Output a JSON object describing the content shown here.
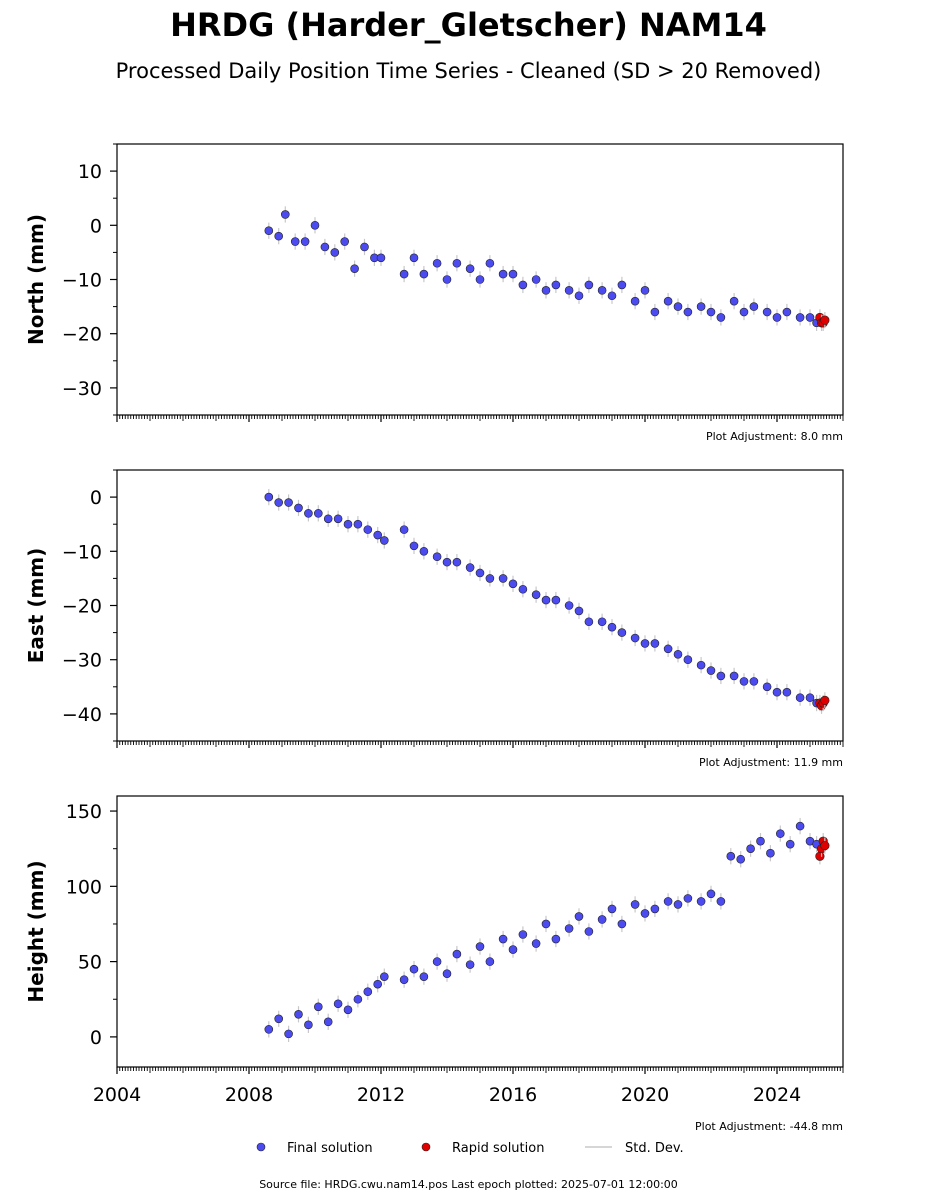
{
  "chart_data": [
    {
      "type": "scatter",
      "panel": "north",
      "title": "HRDG (Harder_Gletscher) NAM14",
      "subtitle": "Processed Daily Position Time Series - Cleaned (SD > 20 Removed)",
      "ylabel": "North (mm)",
      "xlabel": "",
      "xlim": [
        2004,
        2026
      ],
      "ylim": [
        -35,
        15
      ],
      "yticks": [
        10,
        0,
        -10,
        -20,
        -30
      ],
      "plot_adjustment": "Plot Adjustment: 8.0 mm",
      "series": [
        {
          "name": "Final solution",
          "color": "#4b4bf0",
          "x": [
            2008.6,
            2008.9,
            2009.1,
            2009.4,
            2009.7,
            2010.0,
            2010.3,
            2010.6,
            2010.9,
            2011.2,
            2011.5,
            2011.8,
            2012.0,
            2012.7,
            2013.0,
            2013.3,
            2013.7,
            2014.0,
            2014.3,
            2014.7,
            2015.0,
            2015.3,
            2015.7,
            2016.0,
            2016.3,
            2016.7,
            2017.0,
            2017.3,
            2017.7,
            2018.0,
            2018.3,
            2018.7,
            2019.0,
            2019.3,
            2019.7,
            2020.0,
            2020.3,
            2020.7,
            2021.0,
            2021.3,
            2021.7,
            2022.0,
            2022.3,
            2022.7,
            2023.0,
            2023.3,
            2023.7,
            2024.0,
            2024.3,
            2024.7,
            2025.0,
            2025.2
          ],
          "y": [
            -1,
            -2,
            2,
            -3,
            -3,
            0,
            -4,
            -5,
            -3,
            -8,
            -4,
            -6,
            -6,
            -9,
            -6,
            -9,
            -7,
            -10,
            -7,
            -8,
            -10,
            -7,
            -9,
            -9,
            -11,
            -10,
            -12,
            -11,
            -12,
            -13,
            -11,
            -12,
            -13,
            -11,
            -14,
            -12,
            -16,
            -14,
            -15,
            -16,
            -15,
            -16,
            -17,
            -14,
            -16,
            -15,
            -16,
            -17,
            -16,
            -17,
            -17,
            -18
          ]
        },
        {
          "name": "Rapid solution",
          "color": "#e00000",
          "x": [
            2025.3,
            2025.35,
            2025.4,
            2025.45
          ],
          "y": [
            -17,
            -18,
            -18,
            -17.5
          ]
        }
      ]
    },
    {
      "type": "scatter",
      "panel": "east",
      "ylabel": "East (mm)",
      "xlabel": "",
      "xlim": [
        2004,
        2026
      ],
      "ylim": [
        -45,
        5
      ],
      "yticks": [
        0,
        -10,
        -20,
        -30,
        -40
      ],
      "plot_adjustment": "Plot Adjustment: 11.9 mm",
      "series": [
        {
          "name": "Final solution",
          "color": "#4b4bf0",
          "x": [
            2008.6,
            2008.9,
            2009.2,
            2009.5,
            2009.8,
            2010.1,
            2010.4,
            2010.7,
            2011.0,
            2011.3,
            2011.6,
            2011.9,
            2012.1,
            2012.7,
            2013.0,
            2013.3,
            2013.7,
            2014.0,
            2014.3,
            2014.7,
            2015.0,
            2015.3,
            2015.7,
            2016.0,
            2016.3,
            2016.7,
            2017.0,
            2017.3,
            2017.7,
            2018.0,
            2018.3,
            2018.7,
            2019.0,
            2019.3,
            2019.7,
            2020.0,
            2020.3,
            2020.7,
            2021.0,
            2021.3,
            2021.7,
            2022.0,
            2022.3,
            2022.7,
            2023.0,
            2023.3,
            2023.7,
            2024.0,
            2024.3,
            2024.7,
            2025.0,
            2025.2
          ],
          "y": [
            0,
            -1,
            -1,
            -2,
            -3,
            -3,
            -4,
            -4,
            -5,
            -5,
            -6,
            -7,
            -8,
            -6,
            -9,
            -10,
            -11,
            -12,
            -12,
            -13,
            -14,
            -15,
            -15,
            -16,
            -17,
            -18,
            -19,
            -19,
            -20,
            -21,
            -23,
            -23,
            -24,
            -25,
            -26,
            -27,
            -27,
            -28,
            -29,
            -30,
            -31,
            -32,
            -33,
            -33,
            -34,
            -34,
            -35,
            -36,
            -36,
            -37,
            -37,
            -38
          ]
        },
        {
          "name": "Rapid solution",
          "color": "#e00000",
          "x": [
            2025.3,
            2025.35,
            2025.4,
            2025.45
          ],
          "y": [
            -38,
            -38.5,
            -38,
            -37.5
          ]
        }
      ]
    },
    {
      "type": "scatter",
      "panel": "height",
      "ylabel": "Height (mm)",
      "xlabel": "",
      "xlim": [
        2004,
        2026
      ],
      "ylim": [
        -20,
        160
      ],
      "yticks": [
        150,
        100,
        50,
        0
      ],
      "xticks": [
        "2004",
        "2008",
        "2012",
        "2016",
        "2020",
        "2024"
      ],
      "plot_adjustment": "Plot Adjustment: -44.8 mm",
      "series": [
        {
          "name": "Final solution",
          "color": "#4b4bf0",
          "x": [
            2008.6,
            2008.9,
            2009.2,
            2009.5,
            2009.8,
            2010.1,
            2010.4,
            2010.7,
            2011.0,
            2011.3,
            2011.6,
            2011.9,
            2012.1,
            2012.7,
            2013.0,
            2013.3,
            2013.7,
            2014.0,
            2014.3,
            2014.7,
            2015.0,
            2015.3,
            2015.7,
            2016.0,
            2016.3,
            2016.7,
            2017.0,
            2017.3,
            2017.7,
            2018.0,
            2018.3,
            2018.7,
            2019.0,
            2019.3,
            2019.7,
            2020.0,
            2020.3,
            2020.7,
            2021.0,
            2021.3,
            2021.7,
            2022.0,
            2022.3,
            2022.6,
            2022.9,
            2023.2,
            2023.5,
            2023.8,
            2024.1,
            2024.4,
            2024.7,
            2025.0,
            2025.2
          ],
          "y": [
            5,
            12,
            2,
            15,
            8,
            20,
            10,
            22,
            18,
            25,
            30,
            35,
            40,
            38,
            45,
            40,
            50,
            42,
            55,
            48,
            60,
            50,
            65,
            58,
            68,
            62,
            75,
            65,
            72,
            80,
            70,
            78,
            85,
            75,
            88,
            82,
            85,
            90,
            88,
            92,
            90,
            95,
            90,
            120,
            118,
            125,
            130,
            122,
            135,
            128,
            140,
            130,
            128
          ]
        },
        {
          "name": "Rapid solution",
          "color": "#e00000",
          "x": [
            2025.3,
            2025.35,
            2025.4,
            2025.45
          ],
          "y": [
            120,
            125,
            130,
            127
          ]
        }
      ]
    }
  ],
  "legend": {
    "placement": "bottom-center",
    "final_label": "Final solution",
    "rapid_label": "Rapid solution",
    "std_label": "Std. Dev."
  },
  "footer": {
    "source_text": "Source file: HRDG.cwu.nam14.pos  Last epoch plotted: 2025-07-01 12:00:00"
  },
  "colors": {
    "final": "#4b4bf0",
    "rapid": "#e00000",
    "std_dev": "#c8c8c8"
  }
}
